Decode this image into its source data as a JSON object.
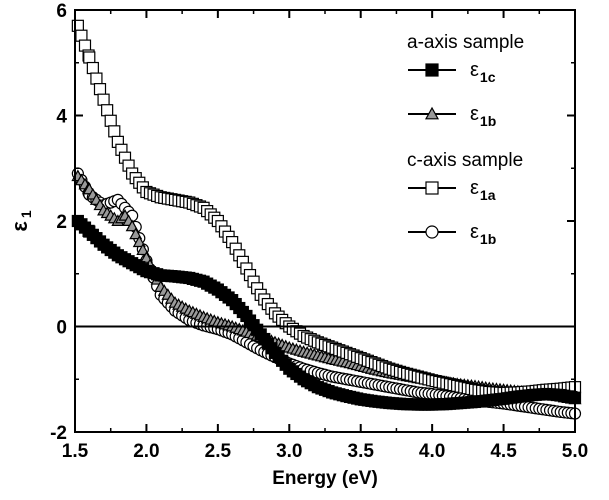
{
  "chart_data": {
    "type": "scatter",
    "title": "",
    "xlabel": "Energy (eV)",
    "ylabel": "ε",
    "ylabel_sub": "1",
    "xlim": [
      1.5,
      5.0
    ],
    "ylim": [
      -2,
      6
    ],
    "xticks": [
      "1.5",
      "2.0",
      "2.5",
      "3.0",
      "3.5",
      "4.0",
      "4.5",
      "5.0"
    ],
    "yticks": [
      "-2",
      "0",
      "2",
      "4",
      "6"
    ],
    "grid": false,
    "legend_position": "top-right",
    "reference_line_y": 0,
    "legend": {
      "groups": [
        {
          "heading": "a-axis sample",
          "series_indices": [
            0,
            1
          ]
        },
        {
          "heading": "c-axis sample",
          "series_indices": [
            2,
            3
          ]
        }
      ]
    },
    "series": [
      {
        "name": "ε",
        "sub": "1c",
        "marker": "square",
        "fill": "#000000",
        "stroke": "#000000",
        "x": [
          1.52,
          1.6,
          1.7,
          1.8,
          1.9,
          2.0,
          2.1,
          2.2,
          2.3,
          2.4,
          2.5,
          2.6,
          2.7,
          2.8,
          2.9,
          3.0,
          3.1,
          3.2,
          3.3,
          3.4,
          3.5,
          3.6,
          3.7,
          3.8,
          3.9,
          4.0,
          4.1,
          4.2,
          4.3,
          4.4,
          4.5,
          4.6,
          4.7,
          4.8,
          4.9,
          5.0
        ],
        "y": [
          2.0,
          1.8,
          1.55,
          1.35,
          1.2,
          1.05,
          0.97,
          0.95,
          0.92,
          0.85,
          0.7,
          0.5,
          0.2,
          -0.15,
          -0.5,
          -0.8,
          -1.0,
          -1.15,
          -1.25,
          -1.32,
          -1.38,
          -1.42,
          -1.45,
          -1.47,
          -1.48,
          -1.48,
          -1.47,
          -1.45,
          -1.43,
          -1.4,
          -1.37,
          -1.33,
          -1.3,
          -1.28,
          -1.3,
          -1.35
        ]
      },
      {
        "name": "ε",
        "sub": "1b",
        "marker": "triangle",
        "fill": "#9a9a9a",
        "stroke": "#000000",
        "x": [
          1.52,
          1.6,
          1.7,
          1.8,
          1.85,
          1.9,
          2.0,
          2.1,
          2.2,
          2.3,
          2.4,
          2.5,
          2.6,
          2.7,
          2.8,
          2.9,
          3.0,
          3.1,
          3.2,
          3.3,
          3.4,
          3.5,
          3.6,
          3.7,
          3.8,
          3.9,
          4.0,
          4.1,
          4.2,
          4.3,
          4.4,
          4.5,
          4.6,
          4.7,
          4.8,
          4.9,
          5.0
        ],
        "y": [
          2.85,
          2.6,
          2.2,
          2.0,
          2.1,
          1.9,
          1.3,
          0.75,
          0.45,
          0.3,
          0.18,
          0.08,
          0.0,
          -0.1,
          -0.2,
          -0.3,
          -0.4,
          -0.48,
          -0.55,
          -0.62,
          -0.68,
          -0.75,
          -0.82,
          -0.88,
          -0.93,
          -0.98,
          -1.02,
          -1.06,
          -1.1,
          -1.13,
          -1.17,
          -1.2,
          -1.23,
          -1.26,
          -1.29,
          -1.33,
          -1.38
        ]
      },
      {
        "name": "ε",
        "sub": "1a",
        "marker": "open-square",
        "fill": "#ffffff",
        "stroke": "#000000",
        "x": [
          1.52,
          1.6,
          1.7,
          1.8,
          1.9,
          2.0,
          2.1,
          2.2,
          2.3,
          2.4,
          2.5,
          2.6,
          2.7,
          2.8,
          2.9,
          3.0,
          3.1,
          3.2,
          3.3,
          3.4,
          3.5,
          3.6,
          3.7,
          3.8,
          3.9,
          4.0,
          4.1,
          4.2,
          4.3,
          4.4,
          4.5,
          4.6,
          4.7,
          4.8,
          4.9,
          5.0
        ],
        "y": [
          5.7,
          5.1,
          4.3,
          3.5,
          2.9,
          2.55,
          2.45,
          2.4,
          2.35,
          2.25,
          2.0,
          1.6,
          1.1,
          0.6,
          0.25,
          0.0,
          -0.18,
          -0.3,
          -0.4,
          -0.5,
          -0.6,
          -0.7,
          -0.8,
          -0.88,
          -0.95,
          -1.02,
          -1.08,
          -1.14,
          -1.2,
          -1.24,
          -1.26,
          -1.25,
          -1.23,
          -1.2,
          -1.18,
          -1.15
        ]
      },
      {
        "name": "ε",
        "sub": "1b",
        "marker": "circle",
        "fill": "#ffffff",
        "stroke": "#000000",
        "x": [
          1.52,
          1.6,
          1.7,
          1.75,
          1.8,
          1.9,
          2.0,
          2.1,
          2.2,
          2.3,
          2.4,
          2.5,
          2.6,
          2.7,
          2.8,
          2.9,
          3.0,
          3.1,
          3.2,
          3.3,
          3.4,
          3.5,
          3.6,
          3.7,
          3.8,
          3.9,
          4.0,
          4.1,
          4.2,
          4.3,
          4.4,
          4.5,
          4.6,
          4.7,
          4.8,
          4.9,
          5.0
        ],
        "y": [
          2.9,
          2.5,
          2.3,
          2.35,
          2.4,
          2.1,
          1.25,
          0.6,
          0.3,
          0.12,
          0.02,
          -0.05,
          -0.15,
          -0.3,
          -0.45,
          -0.58,
          -0.7,
          -0.8,
          -0.88,
          -0.95,
          -1.0,
          -1.05,
          -1.1,
          -1.15,
          -1.2,
          -1.25,
          -1.28,
          -1.32,
          -1.36,
          -1.4,
          -1.43,
          -1.46,
          -1.5,
          -1.54,
          -1.58,
          -1.62,
          -1.65
        ]
      }
    ]
  }
}
